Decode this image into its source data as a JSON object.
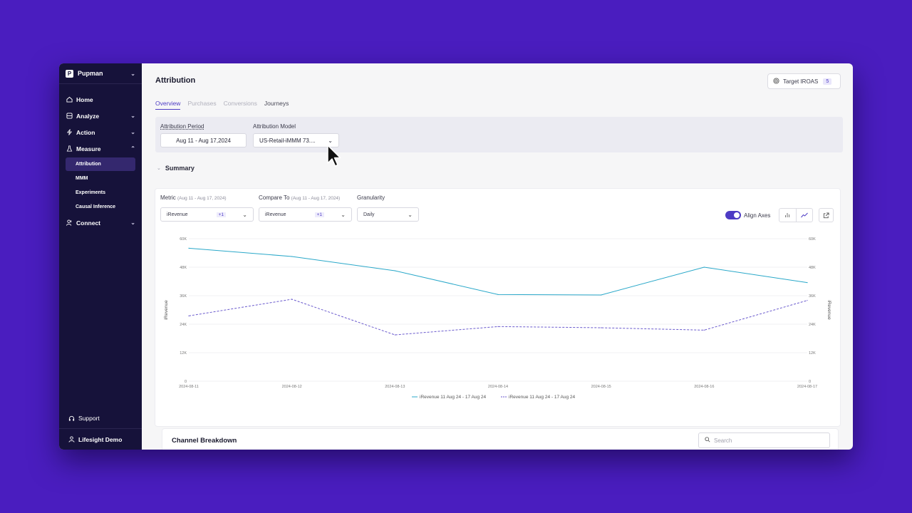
{
  "sidebar": {
    "workspace": "Pupman",
    "workspace_logo": "P",
    "items": [
      {
        "label": "Home",
        "icon": "home-icon"
      },
      {
        "label": "Analyze",
        "icon": "analyze-icon"
      },
      {
        "label": "Action",
        "icon": "bolt-icon"
      },
      {
        "label": "Measure",
        "icon": "flask-icon"
      }
    ],
    "measure_sub": [
      "Attribution",
      "MMM",
      "Experiments",
      "Causal Inference"
    ],
    "connect": "Connect",
    "support": "Support",
    "user": "Lifesight Demo"
  },
  "header": {
    "title": "Attribution",
    "target_label": "Target IROAS",
    "target_count": "5"
  },
  "tabs": [
    "Overview",
    "Purchases",
    "Conversions",
    "Journeys"
  ],
  "filters": {
    "period_label": "Attribution Period",
    "period_value": "Aug 11 - Aug 17,2024",
    "model_label": "Attribution Model",
    "model_value": "US-Retail-iMMM 73...."
  },
  "summary": {
    "title": "Summary",
    "metric_label": "Metric",
    "metric_range": "(Aug 11 - Aug 17, 2024)",
    "metric_value": "iRevenue",
    "metric_plus": "+1",
    "compare_label": "Compare To",
    "compare_range": "(Aug 11 - Aug 17, 2024)",
    "compare_value": "iRevenue",
    "compare_plus": "+1",
    "granularity_label": "Granularity",
    "granularity_value": "Daily",
    "align_axes": "Align Axes"
  },
  "chart_data": {
    "type": "line",
    "x": [
      "2024-08-11",
      "2024-08-12",
      "2024-08-13",
      "2024-08-14",
      "2024-08-15",
      "2024-08-16",
      "2024-08-17"
    ],
    "series": [
      {
        "name": "iRevenue 11 Aug 24 - 17 Aug 24",
        "values": [
          56000,
          52500,
          46500,
          36500,
          36300,
          48000,
          41500
        ],
        "color": "#2aa8c9",
        "style": "solid"
      },
      {
        "name": "iRevenue 11 Aug 24 - 17 Aug 24",
        "values": [
          27500,
          34500,
          19500,
          23000,
          22500,
          21500,
          34000
        ],
        "color": "#6a5acd",
        "style": "dashed"
      }
    ],
    "yticks": [
      "0",
      "12K",
      "24K",
      "36K",
      "48K",
      "60K"
    ],
    "ylim": [
      0,
      60000
    ],
    "ylabel_left": "iRevenue",
    "ylabel_right": "iRevenue",
    "legend": "bottom"
  },
  "breakdown": {
    "title": "Channel Breakdown",
    "search_placeholder": "Search"
  }
}
